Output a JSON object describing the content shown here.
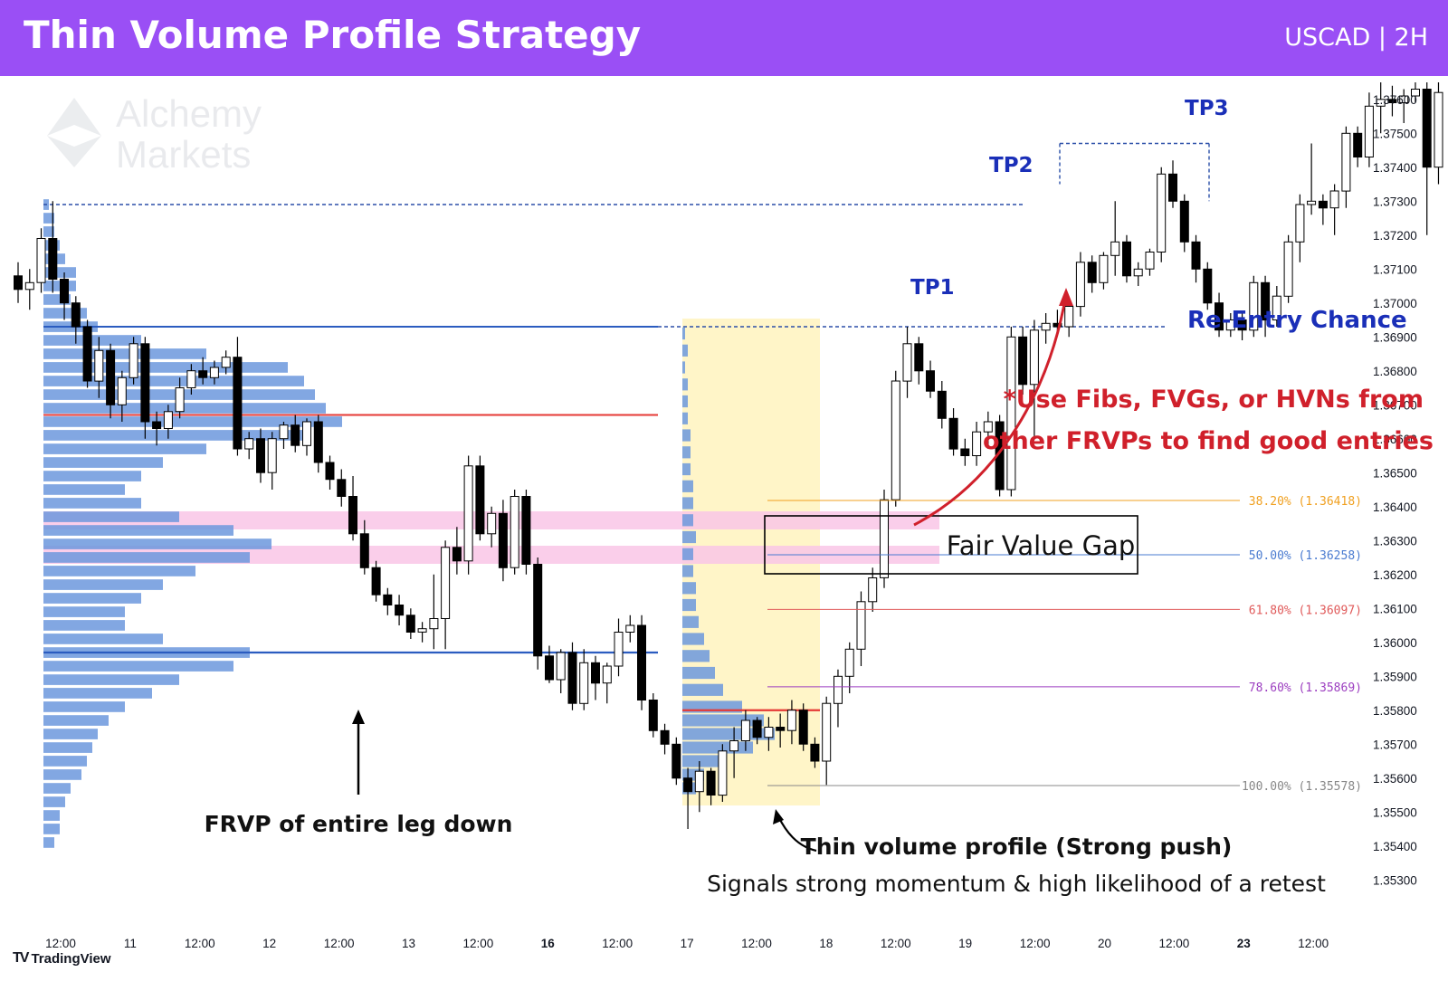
{
  "header": {
    "title": "Thin Volume Profile Strategy",
    "pair": "USCAD | 2H"
  },
  "watermark": {
    "line1": "Alchemy",
    "line2": "Markets"
  },
  "footer": {
    "brand": "TradingView",
    "logo_icon": "tradingview-logo-icon"
  },
  "colors": {
    "header": "#9a4ff5",
    "bull_candle": "#ffffff",
    "bear_candle": "#000000",
    "profile_bar": "#6c98dd",
    "fvg_zone": "#f9c6e6",
    "thin_profile_zone": "#fff5c8",
    "label_blue": "#1a2fb8",
    "label_red": "#d0202b",
    "level_blue": "#2b5cc0",
    "level_red": "#e53935"
  },
  "chart_data": {
    "type": "candlestick",
    "y_axis": {
      "range": [
        1.3525,
        1.3765
      ],
      "ticks": [
        "1.37600",
        "1.37500",
        "1.37400",
        "1.37300",
        "1.37200",
        "1.37100",
        "1.37000",
        "1.36900",
        "1.36800",
        "1.36700",
        "1.36600",
        "1.36500",
        "1.36400",
        "1.36300",
        "1.36200",
        "1.36100",
        "1.36000",
        "1.35900",
        "1.35800",
        "1.35700",
        "1.35600",
        "1.35500",
        "1.35400",
        "1.35300"
      ]
    },
    "x_axis": {
      "ticks": [
        {
          "label": "12:00",
          "bold": false
        },
        {
          "label": "11",
          "bold": false
        },
        {
          "label": "12:00",
          "bold": false
        },
        {
          "label": "12",
          "bold": false
        },
        {
          "label": "12:00",
          "bold": false
        },
        {
          "label": "13",
          "bold": false
        },
        {
          "label": "12:00",
          "bold": false
        },
        {
          "label": "16",
          "bold": true
        },
        {
          "label": "12:00",
          "bold": false
        },
        {
          "label": "17",
          "bold": false
        },
        {
          "label": "12:00",
          "bold": false
        },
        {
          "label": "18",
          "bold": false
        },
        {
          "label": "12:00",
          "bold": false
        },
        {
          "label": "19",
          "bold": false
        },
        {
          "label": "12:00",
          "bold": false
        },
        {
          "label": "20",
          "bold": false
        },
        {
          "label": "12:00",
          "bold": false
        },
        {
          "label": "23",
          "bold": true
        },
        {
          "label": "12:00",
          "bold": false
        }
      ]
    },
    "candles": [
      [
        1.3708,
        1.3712,
        1.37,
        1.3704
      ],
      [
        1.3704,
        1.371,
        1.3698,
        1.3706
      ],
      [
        1.3706,
        1.3722,
        1.3703,
        1.3719
      ],
      [
        1.3719,
        1.373,
        1.3703,
        1.3707
      ],
      [
        1.3707,
        1.3709,
        1.3695,
        1.37
      ],
      [
        1.37,
        1.3702,
        1.3688,
        1.3693
      ],
      [
        1.3693,
        1.3695,
        1.3675,
        1.3677
      ],
      [
        1.3677,
        1.369,
        1.3672,
        1.3686
      ],
      [
        1.3686,
        1.3688,
        1.3666,
        1.367
      ],
      [
        1.367,
        1.368,
        1.3665,
        1.3678
      ],
      [
        1.3678,
        1.369,
        1.3676,
        1.3688
      ],
      [
        1.3688,
        1.369,
        1.366,
        1.3665
      ],
      [
        1.3665,
        1.3668,
        1.3658,
        1.3663
      ],
      [
        1.3663,
        1.367,
        1.366,
        1.3668
      ],
      [
        1.3668,
        1.3678,
        1.3666,
        1.3675
      ],
      [
        1.3675,
        1.3682,
        1.3673,
        1.368
      ],
      [
        1.368,
        1.3684,
        1.3676,
        1.3678
      ],
      [
        1.3678,
        1.3683,
        1.3676,
        1.3681
      ],
      [
        1.3681,
        1.3686,
        1.3679,
        1.3684
      ],
      [
        1.3684,
        1.369,
        1.3655,
        1.3657
      ],
      [
        1.3657,
        1.3662,
        1.3654,
        1.366
      ],
      [
        1.366,
        1.3663,
        1.3647,
        1.365
      ],
      [
        1.365,
        1.3662,
        1.3645,
        1.366
      ],
      [
        1.366,
        1.3665,
        1.3657,
        1.3664
      ],
      [
        1.3664,
        1.3667,
        1.3656,
        1.3658
      ],
      [
        1.3658,
        1.3666,
        1.3655,
        1.3665
      ],
      [
        1.3665,
        1.3667,
        1.365,
        1.3653
      ],
      [
        1.3653,
        1.3655,
        1.3645,
        1.3648
      ],
      [
        1.3648,
        1.3651,
        1.364,
        1.3643
      ],
      [
        1.3643,
        1.3649,
        1.363,
        1.3632
      ],
      [
        1.3632,
        1.3636,
        1.362,
        1.3622
      ],
      [
        1.3622,
        1.3624,
        1.3612,
        1.3614
      ],
      [
        1.3614,
        1.3616,
        1.3608,
        1.3611
      ],
      [
        1.3611,
        1.3614,
        1.3605,
        1.3608
      ],
      [
        1.3608,
        1.361,
        1.3601,
        1.3603
      ],
      [
        1.3603,
        1.3606,
        1.36,
        1.3604
      ],
      [
        1.3604,
        1.362,
        1.3598,
        1.3607
      ],
      [
        1.3607,
        1.363,
        1.3598,
        1.3628
      ],
      [
        1.3628,
        1.3634,
        1.362,
        1.3624
      ],
      [
        1.3624,
        1.3655,
        1.362,
        1.3652
      ],
      [
        1.3652,
        1.3655,
        1.363,
        1.3632
      ],
      [
        1.3632,
        1.364,
        1.3628,
        1.3638
      ],
      [
        1.3638,
        1.3642,
        1.3618,
        1.3622
      ],
      [
        1.3622,
        1.3645,
        1.362,
        1.3643
      ],
      [
        1.3643,
        1.3645,
        1.362,
        1.3623
      ],
      [
        1.3623,
        1.3625,
        1.3592,
        1.3596
      ],
      [
        1.3596,
        1.3599,
        1.3588,
        1.3589
      ],
      [
        1.3589,
        1.3598,
        1.3585,
        1.3597
      ],
      [
        1.3597,
        1.36,
        1.358,
        1.3582
      ],
      [
        1.3582,
        1.3598,
        1.358,
        1.3594
      ],
      [
        1.3594,
        1.3596,
        1.3583,
        1.3588
      ],
      [
        1.3588,
        1.3594,
        1.3582,
        1.3593
      ],
      [
        1.3593,
        1.3607,
        1.359,
        1.3603
      ],
      [
        1.3603,
        1.3608,
        1.36,
        1.3605
      ],
      [
        1.3605,
        1.3608,
        1.358,
        1.3583
      ],
      [
        1.3583,
        1.3585,
        1.3572,
        1.3574
      ],
      [
        1.3574,
        1.3576,
        1.3567,
        1.357
      ],
      [
        1.357,
        1.3572,
        1.3558,
        1.356
      ],
      [
        1.356,
        1.3563,
        1.3545,
        1.3556
      ],
      [
        1.3556,
        1.3565,
        1.355,
        1.3562
      ],
      [
        1.3562,
        1.3563,
        1.3552,
        1.3555
      ],
      [
        1.3555,
        1.357,
        1.3553,
        1.3568
      ],
      [
        1.3568,
        1.3575,
        1.356,
        1.3571
      ],
      [
        1.3571,
        1.358,
        1.3568,
        1.3577
      ],
      [
        1.3577,
        1.3578,
        1.357,
        1.3572
      ],
      [
        1.3572,
        1.3578,
        1.3568,
        1.3575
      ],
      [
        1.3575,
        1.3579,
        1.3569,
        1.3574
      ],
      [
        1.3574,
        1.3583,
        1.357,
        1.358
      ],
      [
        1.358,
        1.3582,
        1.3568,
        1.357
      ],
      [
        1.357,
        1.3572,
        1.3563,
        1.3565
      ],
      [
        1.3565,
        1.3584,
        1.3558,
        1.3582
      ],
      [
        1.3582,
        1.3592,
        1.3575,
        1.359
      ],
      [
        1.359,
        1.36,
        1.3585,
        1.3598
      ],
      [
        1.3598,
        1.3615,
        1.3593,
        1.3612
      ],
      [
        1.3612,
        1.3622,
        1.3609,
        1.3619
      ],
      [
        1.3619,
        1.3645,
        1.3616,
        1.3642
      ],
      [
        1.3642,
        1.368,
        1.364,
        1.3677
      ],
      [
        1.3677,
        1.3693,
        1.3672,
        1.3688
      ],
      [
        1.3688,
        1.369,
        1.3676,
        1.368
      ],
      [
        1.368,
        1.3683,
        1.3672,
        1.3674
      ],
      [
        1.3674,
        1.3677,
        1.3663,
        1.3666
      ],
      [
        1.3666,
        1.3669,
        1.3655,
        1.3657
      ],
      [
        1.3657,
        1.366,
        1.3652,
        1.3655
      ],
      [
        1.3655,
        1.3665,
        1.3652,
        1.3662
      ],
      [
        1.3662,
        1.3668,
        1.3657,
        1.3665
      ],
      [
        1.3665,
        1.3667,
        1.3643,
        1.3645
      ],
      [
        1.3645,
        1.3693,
        1.3643,
        1.369
      ],
      [
        1.369,
        1.3693,
        1.3673,
        1.3676
      ],
      [
        1.3676,
        1.3695,
        1.366,
        1.3692
      ],
      [
        1.3692,
        1.3697,
        1.3688,
        1.3694
      ],
      [
        1.3694,
        1.3698,
        1.3691,
        1.3693
      ],
      [
        1.3693,
        1.37,
        1.369,
        1.3699
      ],
      [
        1.3699,
        1.3715,
        1.3696,
        1.3712
      ],
      [
        1.3712,
        1.3714,
        1.3703,
        1.3706
      ],
      [
        1.3706,
        1.3715,
        1.3704,
        1.3714
      ],
      [
        1.3714,
        1.373,
        1.3708,
        1.3718
      ],
      [
        1.3718,
        1.372,
        1.3706,
        1.3708
      ],
      [
        1.3708,
        1.3712,
        1.3705,
        1.371
      ],
      [
        1.371,
        1.3716,
        1.3708,
        1.3715
      ],
      [
        1.3715,
        1.374,
        1.3712,
        1.3738
      ],
      [
        1.3738,
        1.3742,
        1.3728,
        1.373
      ],
      [
        1.373,
        1.3732,
        1.3715,
        1.3718
      ],
      [
        1.3718,
        1.372,
        1.3706,
        1.371
      ],
      [
        1.371,
        1.3712,
        1.3698,
        1.37
      ],
      [
        1.37,
        1.3703,
        1.369,
        1.3692
      ],
      [
        1.3692,
        1.3697,
        1.369,
        1.3695
      ],
      [
        1.3695,
        1.3697,
        1.3689,
        1.3692
      ],
      [
        1.3692,
        1.3708,
        1.369,
        1.3706
      ],
      [
        1.3706,
        1.3708,
        1.369,
        1.3695
      ],
      [
        1.3695,
        1.3705,
        1.3693,
        1.3702
      ],
      [
        1.3702,
        1.372,
        1.37,
        1.3718
      ],
      [
        1.3718,
        1.3732,
        1.3712,
        1.3729
      ],
      [
        1.3729,
        1.3747,
        1.3726,
        1.373
      ],
      [
        1.373,
        1.3732,
        1.3723,
        1.3728
      ],
      [
        1.3728,
        1.3735,
        1.372,
        1.3733
      ],
      [
        1.3733,
        1.3752,
        1.3728,
        1.375
      ],
      [
        1.375,
        1.3752,
        1.374,
        1.3743
      ],
      [
        1.3743,
        1.3762,
        1.374,
        1.3758
      ],
      [
        1.3758,
        1.3765,
        1.375,
        1.376
      ],
      [
        1.376,
        1.3764,
        1.3755,
        1.3759
      ],
      [
        1.3759,
        1.3763,
        1.3753,
        1.3761
      ],
      [
        1.3761,
        1.3765,
        1.3759,
        1.3763
      ],
      [
        1.3763,
        1.3765,
        1.372,
        1.374
      ],
      [
        1.374,
        1.3765,
        1.3735,
        1.3762
      ]
    ],
    "volume_profiles": [
      {
        "name": "FRVP of entire leg down",
        "bins": [
          [
            1.3729,
            0.01
          ],
          [
            1.3725,
            0.02
          ],
          [
            1.3721,
            0.02
          ],
          [
            1.3717,
            0.03
          ],
          [
            1.3713,
            0.04
          ],
          [
            1.3709,
            0.06
          ],
          [
            1.3705,
            0.06
          ],
          [
            1.3701,
            0.05
          ],
          [
            1.3697,
            0.08
          ],
          [
            1.3693,
            0.1
          ],
          [
            1.3689,
            0.18
          ],
          [
            1.3685,
            0.3
          ],
          [
            1.3681,
            0.45
          ],
          [
            1.3677,
            0.48
          ],
          [
            1.3673,
            0.5
          ],
          [
            1.3669,
            0.52
          ],
          [
            1.3665,
            0.55
          ],
          [
            1.3661,
            0.48
          ],
          [
            1.3657,
            0.3
          ],
          [
            1.3653,
            0.22
          ],
          [
            1.3649,
            0.18
          ],
          [
            1.3645,
            0.15
          ],
          [
            1.3641,
            0.18
          ],
          [
            1.3637,
            0.25
          ],
          [
            1.3633,
            0.35
          ],
          [
            1.3629,
            0.42
          ],
          [
            1.3625,
            0.38
          ],
          [
            1.3621,
            0.28
          ],
          [
            1.3617,
            0.22
          ],
          [
            1.3613,
            0.18
          ],
          [
            1.3609,
            0.15
          ],
          [
            1.3605,
            0.15
          ],
          [
            1.3601,
            0.22
          ],
          [
            1.3597,
            0.38
          ],
          [
            1.3593,
            0.35
          ],
          [
            1.3589,
            0.25
          ],
          [
            1.3585,
            0.2
          ],
          [
            1.3581,
            0.15
          ],
          [
            1.3577,
            0.12
          ],
          [
            1.3573,
            0.1
          ],
          [
            1.3569,
            0.09
          ],
          [
            1.3565,
            0.08
          ],
          [
            1.3561,
            0.07
          ],
          [
            1.3557,
            0.05
          ],
          [
            1.3553,
            0.04
          ],
          [
            1.3549,
            0.03
          ],
          [
            1.3545,
            0.03
          ],
          [
            1.3541,
            0.02
          ]
        ]
      },
      {
        "name": "Thin volume profile (Strong push)",
        "bins": [
          [
            1.3691,
            0.01
          ],
          [
            1.3686,
            0.02
          ],
          [
            1.3681,
            0.01
          ],
          [
            1.3676,
            0.02
          ],
          [
            1.3671,
            0.02
          ],
          [
            1.3666,
            0.02
          ],
          [
            1.3661,
            0.03
          ],
          [
            1.3656,
            0.03
          ],
          [
            1.3651,
            0.03
          ],
          [
            1.3646,
            0.04
          ],
          [
            1.3641,
            0.04
          ],
          [
            1.3636,
            0.04
          ],
          [
            1.3631,
            0.05
          ],
          [
            1.3626,
            0.04
          ],
          [
            1.3621,
            0.04
          ],
          [
            1.3616,
            0.05
          ],
          [
            1.3611,
            0.05
          ],
          [
            1.3606,
            0.06
          ],
          [
            1.3601,
            0.08
          ],
          [
            1.3596,
            0.1
          ],
          [
            1.3591,
            0.12
          ],
          [
            1.3586,
            0.15
          ],
          [
            1.3581,
            0.22
          ],
          [
            1.3577,
            0.3
          ],
          [
            1.3573,
            0.34
          ],
          [
            1.3569,
            0.26
          ],
          [
            1.3565,
            0.15
          ],
          [
            1.3561,
            0.08
          ],
          [
            1.3557,
            0.05
          ]
        ]
      }
    ],
    "fib_levels": [
      {
        "label": "38.20% (1.36418)",
        "value": 1.36418,
        "color": "#f0a020"
      },
      {
        "label": "50.00% (1.36258)",
        "value": 1.36258,
        "color": "#4a7bd0"
      },
      {
        "label": "61.80% (1.36097)",
        "value": 1.36097,
        "color": "#e05a5a"
      },
      {
        "label": "78.60% (1.35869)",
        "value": 1.35869,
        "color": "#9c3ec0"
      },
      {
        "label": "100.00% (1.35578)",
        "value": 1.35578,
        "color": "#888888"
      }
    ],
    "annotations": {
      "tp1": "TP1",
      "tp2": "TP2",
      "tp3": "TP3",
      "re_entry": "Re-Entry Chance",
      "tip_line1": "*Use Fibs, FVGs, or HVNs from",
      "tip_line2": "other FRVPs to find good entries",
      "fvg_box": "Fair Value Gap",
      "frvp_leg": "FRVP of entire leg down",
      "thin_title": "Thin volume profile (Strong push)",
      "thin_sub": "Signals strong momentum & high likelihood of a retest"
    }
  }
}
